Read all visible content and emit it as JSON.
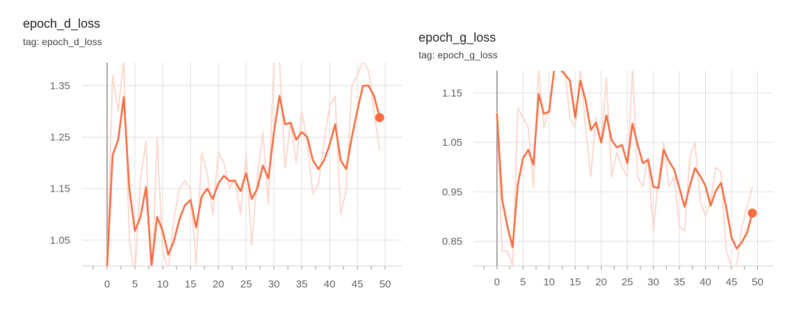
{
  "chart_data": [
    {
      "type": "line",
      "title": "epoch_d_loss",
      "subtitle": "tag: epoch_d_loss",
      "xlim": [
        -4.5,
        53
      ],
      "ylim": [
        1.0,
        1.395
      ],
      "xticks": [
        "0",
        "5",
        "10",
        "15",
        "20",
        "25",
        "30",
        "35",
        "40",
        "45",
        "50"
      ],
      "yticks": [
        "1.05",
        "1.15",
        "1.25",
        "1.35"
      ],
      "grid": true,
      "colors": {
        "smoothed": "#f96b3e",
        "raw": "#fbd8cd",
        "axis": "#888888",
        "grid": "#dddddd"
      },
      "series": [
        {
          "values": [
            1.0,
            1.215,
            1.245,
            1.328,
            1.15,
            1.068,
            1.095,
            1.153,
            1.002,
            1.095,
            1.068,
            1.022,
            1.048,
            1.09,
            1.118,
            1.128,
            1.075,
            1.135,
            1.15,
            1.13,
            1.16,
            1.175,
            1.165,
            1.165,
            1.145,
            1.18,
            1.13,
            1.15,
            1.195,
            1.17,
            1.26,
            1.33,
            1.275,
            1.278,
            1.245,
            1.26,
            1.25,
            1.205,
            1.188,
            1.205,
            1.235,
            1.275,
            1.205,
            1.188,
            1.25,
            1.302,
            1.35,
            1.35,
            1.33,
            1.288
          ]
        },
        {
          "values": [
            1.0,
            1.37,
            1.3,
            1.4,
            1.05,
            0.98,
            1.17,
            1.24,
            0.95,
            1.25,
            1.03,
            0.99,
            1.09,
            1.15,
            1.165,
            1.15,
            1.0,
            1.22,
            1.18,
            1.1,
            1.22,
            1.2,
            1.15,
            1.17,
            1.1,
            1.22,
            1.04,
            1.17,
            1.26,
            1.12,
            1.4,
            1.4,
            1.19,
            1.28,
            1.2,
            1.3,
            1.24,
            1.14,
            1.16,
            1.24,
            1.31,
            1.33,
            1.1,
            1.15,
            1.35,
            1.37,
            1.4,
            1.38,
            1.3,
            1.225
          ]
        }
      ]
    },
    {
      "type": "line",
      "title": "epoch_g_loss",
      "subtitle": "tag: epoch_g_loss",
      "xlim": [
        -4.5,
        53
      ],
      "ylim": [
        0.8,
        1.195
      ],
      "xticks": [
        "0",
        "5",
        "10",
        "15",
        "20",
        "25",
        "30",
        "35",
        "40",
        "45",
        "50"
      ],
      "yticks": [
        "0.85",
        "0.95",
        "1.05",
        "1.15"
      ],
      "grid": true,
      "colors": {
        "smoothed": "#f96b3e",
        "raw": "#fbd8cd",
        "axis": "#888888",
        "grid": "#dddddd"
      },
      "series": [
        {
          "values": [
            1.108,
            0.935,
            0.88,
            0.838,
            0.965,
            1.018,
            1.035,
            1.005,
            1.148,
            1.108,
            1.112,
            1.2,
            1.2,
            1.188,
            1.175,
            1.1,
            1.175,
            1.135,
            1.075,
            1.09,
            1.05,
            1.105,
            1.055,
            1.04,
            1.045,
            1.008,
            1.088,
            1.045,
            1.008,
            1.015,
            0.96,
            0.958,
            1.035,
            1.012,
            0.995,
            0.958,
            0.92,
            0.962,
            0.998,
            0.982,
            0.962,
            0.922,
            0.952,
            0.968,
            0.918,
            0.858,
            0.835,
            0.848,
            0.868,
            0.907
          ]
        },
        {
          "values": [
            1.11,
            0.83,
            0.83,
            0.8,
            1.12,
            1.1,
            1.08,
            0.96,
            1.2,
            1.08,
            1.12,
            1.2,
            1.2,
            1.2,
            1.1,
            1.08,
            1.2,
            1.08,
            0.98,
            1.1,
            1.05,
            1.18,
            0.98,
            1.03,
            1.0,
            0.98,
            1.2,
            0.98,
            0.96,
            1.02,
            0.87,
            0.98,
            1.05,
            0.96,
            0.98,
            0.88,
            0.87,
            1.02,
            1.05,
            0.93,
            0.9,
            0.93,
            1.0,
            0.99,
            0.83,
            0.8,
            0.8,
            0.88,
            0.92,
            0.96
          ]
        }
      ]
    }
  ]
}
